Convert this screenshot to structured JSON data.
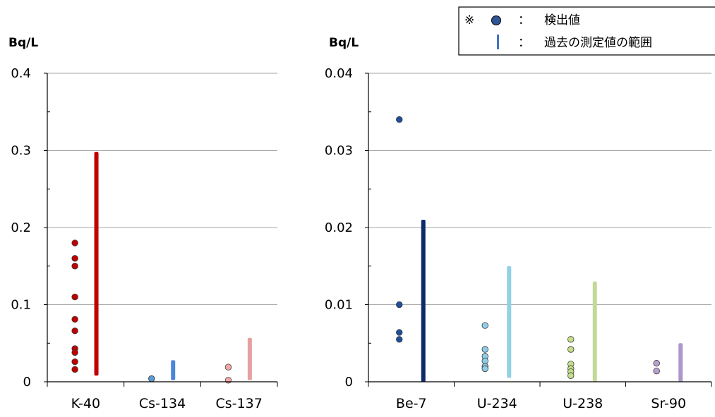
{
  "legend": {
    "marker_symbol": "※",
    "colon": "：",
    "detected_label": "検出値",
    "range_label": "過去の測定値の範囲",
    "detected_color": "#2F5597",
    "range_color": "#4472C4"
  },
  "chart_data": [
    {
      "type": "scatter",
      "ylabel": "Bq/L",
      "ylim": [
        0,
        0.4
      ],
      "yticks": [
        "0",
        "0.1",
        "0.2",
        "0.3",
        "0.4"
      ],
      "ytick_values": [
        0,
        0.1,
        0.2,
        0.3,
        0.4
      ],
      "grid": true,
      "categories": [
        "K-40",
        "Cs-134",
        "Cs-137"
      ],
      "series": [
        {
          "category": "K-40",
          "color": "#C00000",
          "range_color": "#C00000",
          "detected": [
            0.18,
            0.16,
            0.15,
            0.11,
            0.081,
            0.066,
            0.043,
            0.038,
            0.026,
            0.016
          ],
          "range": [
            0.008,
            0.298
          ]
        },
        {
          "category": "Cs-134",
          "color": "#5B9BD5",
          "range_color": "#4A86D8",
          "detected": [
            0.004
          ],
          "range": [
            0.002,
            0.028
          ]
        },
        {
          "category": "Cs-137",
          "color": "#F4A7A7",
          "range_color": "#E6A0A0",
          "detected": [
            0.019,
            0.002
          ],
          "range": [
            0.002,
            0.057
          ]
        }
      ]
    },
    {
      "type": "scatter",
      "ylabel": "Bq/L",
      "ylim": [
        0,
        0.04
      ],
      "yticks": [
        "0",
        "0.01",
        "0.02",
        "0.03",
        "0.04"
      ],
      "ytick_values": [
        0,
        0.01,
        0.02,
        0.03,
        0.04
      ],
      "grid": true,
      "categories": [
        "Be-7",
        "U-234",
        "U-238",
        "Sr-90"
      ],
      "series": [
        {
          "category": "Be-7",
          "color": "#1F4E9A",
          "range_color": "#0D2A6B",
          "detected": [
            0.034,
            0.01,
            0.0064,
            0.0055
          ],
          "range": [
            0.0,
            0.021
          ]
        },
        {
          "category": "U-234",
          "color": "#8ECDE8",
          "range_color": "#92D0E6",
          "detected": [
            0.0073,
            0.0042,
            0.0033,
            0.0027,
            0.002,
            0.0017
          ],
          "range": [
            0.0005,
            0.015
          ]
        },
        {
          "category": "U-238",
          "color": "#C5DE8C",
          "range_color": "#C3D99A",
          "detected": [
            0.0055,
            0.0042,
            0.0023,
            0.0017,
            0.0013,
            0.0008
          ],
          "range": [
            0.0,
            0.013
          ]
        },
        {
          "category": "Sr-90",
          "color": "#B7A1CE",
          "range_color": "#AB98C9",
          "detected": [
            0.0024,
            0.0014
          ],
          "range": [
            0.0,
            0.005
          ]
        }
      ]
    }
  ]
}
